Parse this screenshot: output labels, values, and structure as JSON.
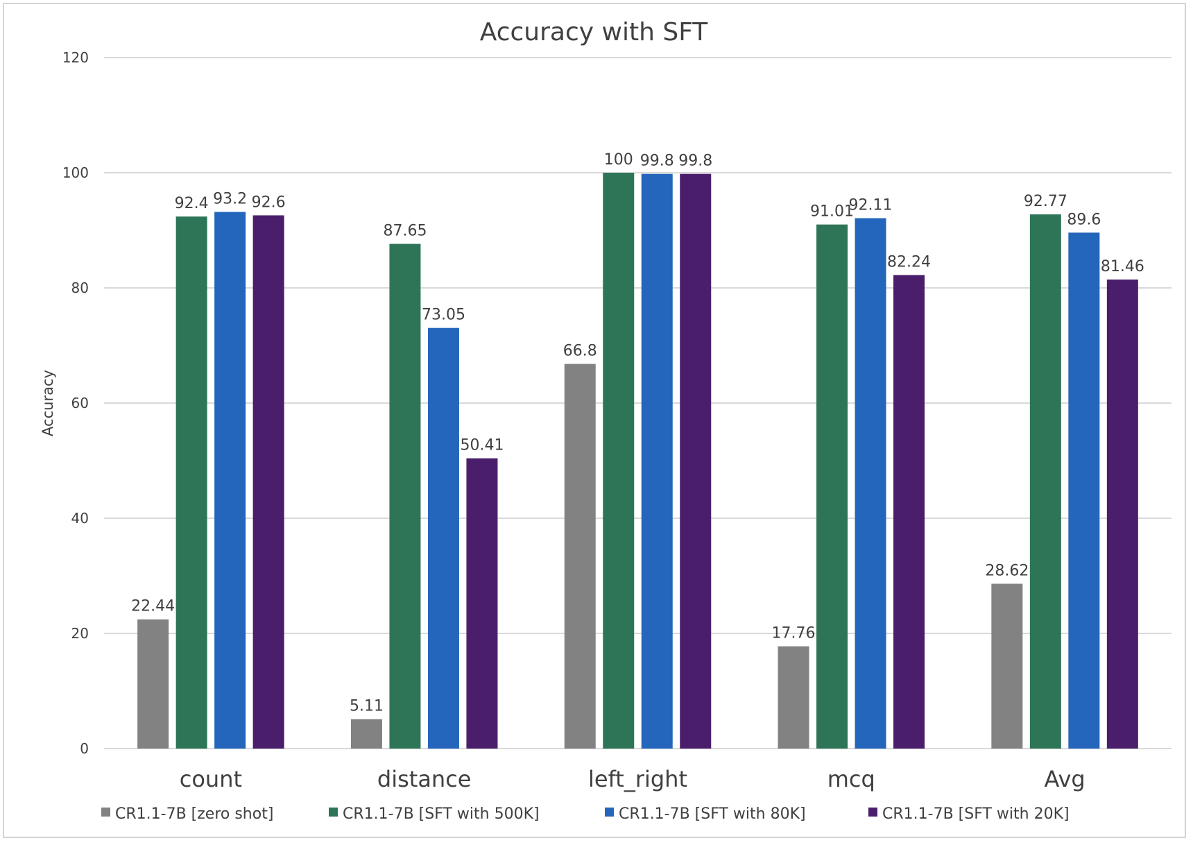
{
  "chart_data": {
    "type": "bar",
    "title": "Accuracy with SFT",
    "xlabel": "",
    "ylabel": "Accuracy",
    "ylim": [
      0,
      120
    ],
    "yticks": [
      0,
      20,
      40,
      60,
      80,
      100,
      120
    ],
    "grid": true,
    "legend_placement": "bottom",
    "categories": [
      "count",
      "distance",
      "left_right",
      "mcq",
      "Avg"
    ],
    "series": [
      {
        "name": "CR1.1-7B [zero shot]",
        "color": "#828282",
        "values": [
          22.44,
          5.11,
          66.8,
          17.76,
          28.62
        ]
      },
      {
        "name": "CR1.1-7B [SFT with 500K]",
        "color": "#2e7558",
        "values": [
          92.4,
          87.65,
          100,
          91.01,
          92.77
        ]
      },
      {
        "name": "CR1.1-7B [SFT with 80K]",
        "color": "#2366bb",
        "values": [
          93.2,
          73.05,
          99.8,
          92.11,
          89.6
        ]
      },
      {
        "name": "CR1.1-7B [SFT with 20K]",
        "color": "#4b1e6c",
        "values": [
          92.6,
          50.41,
          99.8,
          82.24,
          81.46
        ]
      }
    ]
  }
}
